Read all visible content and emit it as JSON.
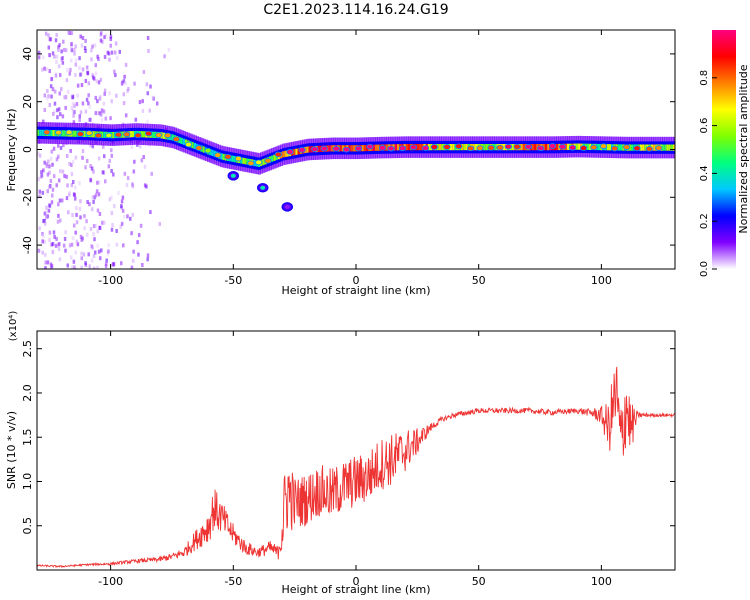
{
  "title": "C2E1.2023.114.16.24.G19",
  "chart_data": [
    {
      "type": "heatmap",
      "xlabel": "Height of straight line (km)",
      "ylabel": "Frequency (Hz)",
      "xlim": [
        -130,
        130
      ],
      "ylim": [
        -50,
        50
      ],
      "xticks": [
        -100,
        -50,
        0,
        50,
        100
      ],
      "yticks": [
        -40,
        -20,
        0,
        20,
        40
      ],
      "colorbar": {
        "label": "Normalized spectral amplitude",
        "range": [
          0,
          1
        ],
        "ticks": [
          "0.0",
          "0.2",
          "0.4",
          "0.6",
          "0.8"
        ],
        "colormap": [
          "#ffffff",
          "#8000ff",
          "#0000ff",
          "#00c8ff",
          "#00ff80",
          "#80ff00",
          "#ffff00",
          "#ff8000",
          "#ff0000",
          "#ff0080"
        ]
      },
      "ridge": {
        "x": [
          -130,
          -110,
          -100,
          -90,
          -80,
          -75,
          -70,
          -65,
          -60,
          -55,
          -50,
          -45,
          -40,
          -35,
          -30,
          -25,
          -20,
          -10,
          0,
          10,
          20,
          40,
          60,
          80,
          90,
          100,
          110,
          120,
          130
        ],
        "y": [
          7,
          6.5,
          6,
          6.5,
          6,
          5,
          3,
          1,
          -1,
          -3,
          -4,
          -5,
          -6,
          -4,
          -2,
          -1,
          0,
          0.5,
          0.5,
          0.8,
          1,
          1,
          1,
          1,
          1.2,
          1,
          0.8,
          0.8,
          0.8
        ],
        "amplitude": [
          0.5,
          0.5,
          0.45,
          0.55,
          0.55,
          0.5,
          0.45,
          0.45,
          0.4,
          0.45,
          0.5,
          0.5,
          0.45,
          0.5,
          0.7,
          0.8,
          0.85,
          0.85,
          0.8,
          0.85,
          0.85,
          0.6,
          0.6,
          0.9,
          0.6,
          0.5,
          0.5,
          0.6,
          0.6
        ]
      },
      "spots": [
        {
          "x": -50,
          "y": -11,
          "amplitude": 0.4
        },
        {
          "x": -38,
          "y": -16,
          "amplitude": 0.4
        },
        {
          "x": -28,
          "y": -24,
          "amplitude": 0.1
        }
      ]
    },
    {
      "type": "line",
      "xlabel": "Height of straight line (km)",
      "ylabel": "SNR (10 * v/v)",
      "yscale_label": "(x10⁴)",
      "xlim": [
        -130,
        130
      ],
      "ylim": [
        0,
        2.7
      ],
      "xticks": [
        -100,
        -50,
        0,
        50,
        100
      ],
      "yticks": [
        0.5,
        1.0,
        1.5,
        2.0,
        2.5
      ],
      "ytick_labels": [
        "0.5",
        "1.0",
        "1.5",
        "2.0",
        "2.5"
      ],
      "color": "#ee3333",
      "series": [
        {
          "x": [
            -130,
            -120,
            -110,
            -100,
            -90,
            -80,
            -75,
            -70,
            -65,
            -60,
            -58,
            -55,
            -50,
            -45,
            -40,
            -35,
            -32,
            -30,
            -28,
            -25,
            -20,
            -15,
            -10,
            -5,
            0,
            5,
            10,
            15,
            20,
            25,
            30,
            35,
            40,
            50,
            60,
            70,
            80,
            90,
            95,
            100,
            103,
            106,
            108,
            110,
            112,
            115,
            120,
            125,
            130
          ],
          "y": [
            0.05,
            0.04,
            0.06,
            0.07,
            0.1,
            0.12,
            0.15,
            0.2,
            0.35,
            0.5,
            0.7,
            0.6,
            0.4,
            0.25,
            0.2,
            0.25,
            0.2,
            0.5,
            0.9,
            0.75,
            0.8,
            0.9,
            0.85,
            0.95,
            1.0,
            1.05,
            1.2,
            1.25,
            1.35,
            1.45,
            1.6,
            1.7,
            1.75,
            1.8,
            1.8,
            1.8,
            1.78,
            1.8,
            1.78,
            1.75,
            1.6,
            2.0,
            1.4,
            1.9,
            1.6,
            1.75,
            1.75,
            1.75,
            1.75
          ],
          "noise": [
            0.01,
            0.01,
            0.01,
            0.015,
            0.02,
            0.03,
            0.04,
            0.06,
            0.12,
            0.2,
            0.25,
            0.2,
            0.12,
            0.08,
            0.06,
            0.08,
            0.08,
            0.4,
            0.5,
            0.3,
            0.3,
            0.3,
            0.3,
            0.3,
            0.3,
            0.3,
            0.3,
            0.3,
            0.25,
            0.15,
            0.05,
            0.03,
            0.03,
            0.03,
            0.03,
            0.03,
            0.03,
            0.03,
            0.04,
            0.1,
            0.3,
            0.5,
            0.5,
            0.5,
            0.3,
            0.03,
            0.02,
            0.02,
            0.02
          ]
        }
      ]
    }
  ]
}
